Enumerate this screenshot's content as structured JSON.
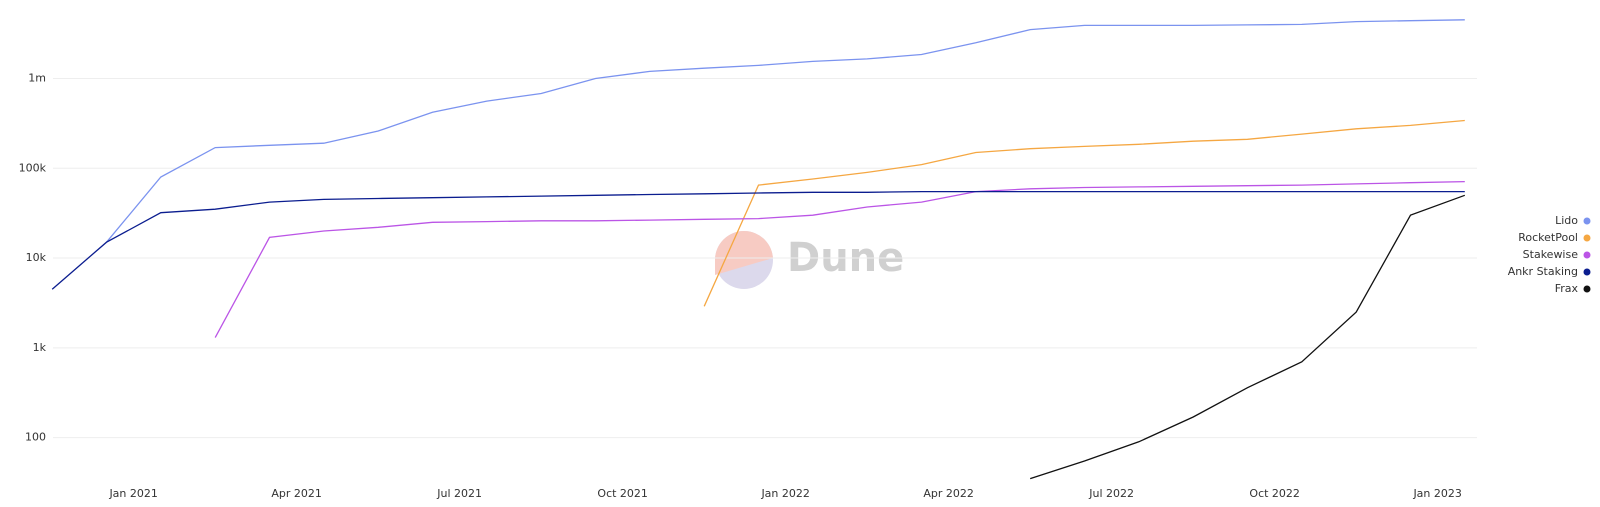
{
  "chart_data": {
    "type": "line",
    "watermark": "Dune",
    "log_scale": true,
    "grid": true,
    "legend": "right",
    "x": [
      "2020-11",
      "2020-12",
      "2021-01",
      "2021-02",
      "2021-03",
      "2021-04",
      "2021-05",
      "2021-06",
      "2021-07",
      "2021-08",
      "2021-09",
      "2021-10",
      "2021-11",
      "2021-12",
      "2022-01",
      "2022-02",
      "2022-03",
      "2022-04",
      "2022-05",
      "2022-06",
      "2022-07",
      "2022-08",
      "2022-09",
      "2022-10",
      "2022-11",
      "2022-12",
      "2023-01"
    ],
    "xlim": [
      "2020-11",
      "2023-02"
    ],
    "xticks": [
      {
        "value": "2021-01",
        "label": "Jan 2021"
      },
      {
        "value": "2021-04",
        "label": "Apr 2021"
      },
      {
        "value": "2021-07",
        "label": "Jul 2021"
      },
      {
        "value": "2021-10",
        "label": "Oct 2021"
      },
      {
        "value": "2022-01",
        "label": "Jan 2022"
      },
      {
        "value": "2022-04",
        "label": "Apr 2022"
      },
      {
        "value": "2022-07",
        "label": "Jul 2022"
      },
      {
        "value": "2022-10",
        "label": "Oct 2022"
      },
      {
        "value": "2023-01",
        "label": "Jan 2023"
      }
    ],
    "ylim": [
      30,
      6000000
    ],
    "yticks": [
      100,
      {
        "value": 1000,
        "label": "1k"
      },
      {
        "value": 10000,
        "label": "10k"
      },
      {
        "value": 100000,
        "label": "100k"
      },
      {
        "value": 1000000,
        "label": "1m"
      }
    ],
    "series": [
      {
        "name": "Lido",
        "color": "#7b93ef",
        "values": [
          null,
          15000,
          80000,
          170000,
          180000,
          190000,
          260000,
          420000,
          560000,
          680000,
          1000000,
          1200000,
          1300000,
          1400000,
          1550000,
          1650000,
          1850000,
          2500000,
          3500000,
          3900000,
          3900000,
          3900000,
          3950000,
          4000000,
          4300000,
          4400000,
          4500000
        ]
      },
      {
        "name": "RocketPool",
        "color": "#f5a742",
        "values": [
          null,
          null,
          null,
          null,
          null,
          null,
          null,
          null,
          null,
          null,
          null,
          null,
          2900,
          65000,
          76000,
          90000,
          110000,
          150000,
          165000,
          175000,
          185000,
          200000,
          210000,
          240000,
          275000,
          300000,
          340000
        ]
      },
      {
        "name": "Stakewise",
        "color": "#bb55e6",
        "values": [
          null,
          null,
          null,
          1300,
          17000,
          20000,
          22000,
          25000,
          25500,
          26000,
          26000,
          26500,
          27000,
          27500,
          30000,
          37000,
          42000,
          55000,
          59000,
          61000,
          62000,
          63000,
          64000,
          65000,
          67000,
          69000,
          71000
        ]
      },
      {
        "name": "Ankr Staking",
        "color": "#0b1d8f",
        "values": [
          4500,
          15000,
          32000,
          35000,
          42000,
          45000,
          46000,
          47000,
          48000,
          49000,
          50000,
          51000,
          52000,
          53000,
          54000,
          54000,
          55000,
          55000,
          55000,
          55000,
          55000,
          55000,
          55000,
          55000,
          55000,
          55000,
          55000
        ]
      },
      {
        "name": "Frax",
        "color": "#111111",
        "values": [
          null,
          null,
          null,
          null,
          null,
          null,
          null,
          null,
          null,
          null,
          null,
          null,
          null,
          null,
          null,
          null,
          null,
          null,
          35,
          55,
          90,
          170,
          360,
          700,
          2500,
          30000,
          50000
        ]
      }
    ]
  }
}
